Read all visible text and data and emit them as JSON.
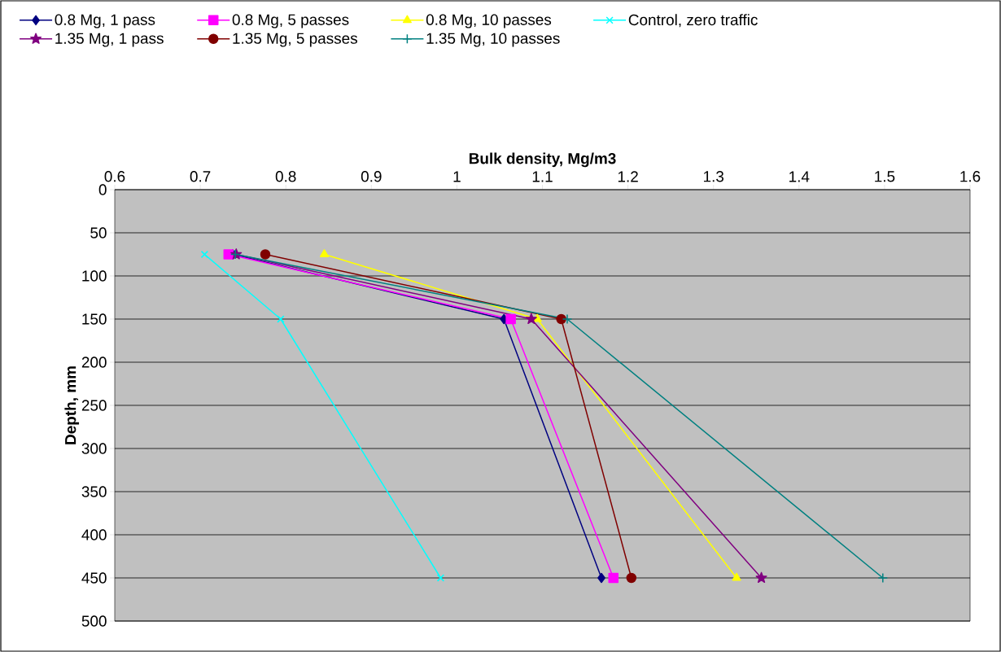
{
  "chart_data": {
    "type": "line",
    "xlabel": "Bulk density, Mg/m3",
    "ylabel": "Depth, mm",
    "xlim": [
      0.6,
      1.6
    ],
    "xticks": [
      0.6,
      0.7,
      0.8,
      0.9,
      1,
      1.1,
      1.2,
      1.3,
      1.4,
      1.5,
      1.6
    ],
    "ylim": [
      500,
      0
    ],
    "yticks": [
      0,
      50,
      100,
      150,
      200,
      250,
      300,
      350,
      400,
      450,
      500
    ],
    "grid": "y",
    "legend": "top",
    "line_style": "solid",
    "series": [
      {
        "name": "0.8 Mg, 1 pass",
        "color": "#000080",
        "marker": "diamond",
        "x": [
          0.738,
          1.055,
          1.169
        ],
        "values": [
          75,
          150,
          450
        ]
      },
      {
        "name": "0.8 Mg, 5 passes",
        "color": "#ff00ff",
        "marker": "square",
        "x": [
          0.733,
          1.063,
          1.183
        ],
        "values": [
          75,
          150,
          450
        ]
      },
      {
        "name": "0.8 Mg, 10 passes",
        "color": "#ffff00",
        "marker": "triangle",
        "x": [
          0.845,
          1.094,
          1.327
        ],
        "values": [
          75,
          150,
          450
        ]
      },
      {
        "name": "Control, zero traffic",
        "color": "#00ffff",
        "marker": "cross",
        "x": [
          0.705,
          0.794,
          0.981
        ],
        "values": [
          75,
          150,
          450
        ]
      },
      {
        "name": "1.35 Mg, 1 pass",
        "color": "#800080",
        "marker": "star",
        "x": [
          0.742,
          1.087,
          1.356
        ],
        "values": [
          75,
          150,
          450
        ]
      },
      {
        "name": "1.35 Mg, 5 passes",
        "color": "#800000",
        "marker": "circle",
        "x": [
          0.776,
          1.122,
          1.204
        ],
        "values": [
          75,
          150,
          450
        ]
      },
      {
        "name": "1.35 Mg, 10 passes",
        "color": "#008080",
        "marker": "plus",
        "x": [
          0.741,
          1.129,
          1.498
        ],
        "values": [
          75,
          150,
          450
        ]
      }
    ]
  }
}
